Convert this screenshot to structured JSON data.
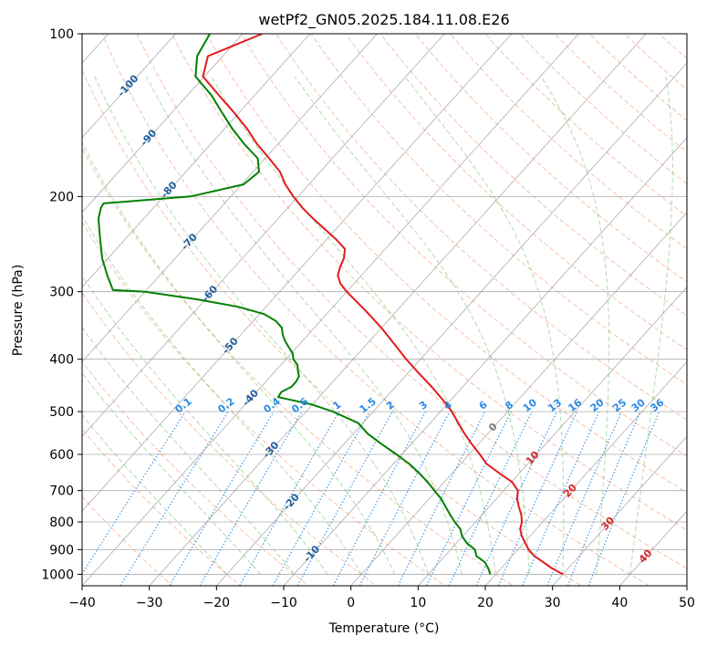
{
  "chart_data": {
    "type": "line",
    "title": "wetPf2_GN05.2025.184.11.08.E26",
    "xlabel": "Temperature (°C)",
    "ylabel": "Pressure (hPa)",
    "xlim": [
      -40,
      50
    ],
    "ylim": [
      1050,
      100
    ],
    "y_scale": "log",
    "x_ticks": [
      -40,
      -30,
      -20,
      -10,
      0,
      10,
      20,
      30,
      40,
      50
    ],
    "y_ticks": [
      100,
      200,
      300,
      400,
      500,
      600,
      700,
      800,
      900,
      1000
    ],
    "grid": true,
    "colors": {
      "temperature": "#e41a1c",
      "dewpoint": "#008000",
      "isotherm": "#999999",
      "dry_adiabat": "#f4a582",
      "moist_adiabat": "#4daf4a",
      "mixing_ratio": "#2b8be6",
      "label_dark_blue": "#1f5f9e",
      "label_red": "#d62728",
      "label_gray": "#777777"
    },
    "series": [
      {
        "key": "temperature",
        "pressure": [
          1000,
          975,
          950,
          925,
          900,
          875,
          850,
          825,
          800,
          775,
          750,
          725,
          700,
          675,
          650,
          625,
          600,
          575,
          550,
          525,
          500,
          475,
          450,
          425,
          400,
          375,
          350,
          325,
          300,
          290,
          280,
          270,
          260,
          250,
          240,
          230,
          220,
          210,
          200,
          190,
          180,
          170,
          160,
          150,
          140,
          130,
          120,
          110,
          100
        ],
        "values": [
          30.0,
          27.6,
          25.5,
          23.3,
          21.6,
          20.2,
          18.8,
          17.6,
          16.9,
          15.8,
          14.4,
          13.1,
          12.1,
          10.1,
          7.0,
          3.9,
          1.6,
          -0.9,
          -3.4,
          -5.8,
          -8.3,
          -11.3,
          -14.6,
          -18.3,
          -22.1,
          -25.9,
          -30.0,
          -34.7,
          -40.0,
          -42.0,
          -43.5,
          -44.3,
          -44.9,
          -46.0,
          -48.6,
          -51.6,
          -54.7,
          -57.8,
          -60.7,
          -63.5,
          -66.0,
          -69.4,
          -73.1,
          -76.6,
          -80.7,
          -85.3,
          -90.2,
          -92.2,
          -87.1
        ]
      },
      {
        "key": "dewpoint",
        "pressure": [
          1000,
          975,
          950,
          925,
          900,
          875,
          850,
          825,
          800,
          775,
          750,
          725,
          700,
          675,
          650,
          625,
          600,
          575,
          550,
          525,
          500,
          485,
          470,
          460,
          450,
          440,
          430,
          420,
          410,
          400,
          390,
          380,
          370,
          360,
          350,
          340,
          330,
          320,
          310,
          300,
          298,
          280,
          260,
          240,
          220,
          210,
          206,
          200,
          190,
          180,
          170,
          160,
          150,
          140,
          130,
          120,
          110,
          100
        ],
        "values": [
          19.2,
          18.1,
          16.8,
          14.7,
          13.6,
          11.5,
          9.9,
          8.7,
          6.9,
          5.2,
          3.5,
          1.8,
          -0.3,
          -2.5,
          -4.9,
          -7.6,
          -10.8,
          -14.3,
          -17.8,
          -20.7,
          -26.0,
          -30.1,
          -36.1,
          -36.3,
          -35.5,
          -35.5,
          -35.8,
          -36.7,
          -37.5,
          -38.9,
          -39.8,
          -41.2,
          -42.6,
          -43.8,
          -44.8,
          -46.6,
          -49.3,
          -54.1,
          -61.2,
          -70.0,
          -75.0,
          -77.8,
          -80.9,
          -83.7,
          -86.7,
          -87.8,
          -88.0,
          -76.0,
          -69.7,
          -69.1,
          -71.1,
          -75.0,
          -78.8,
          -82.5,
          -86.4,
          -91.3,
          -93.8,
          -94.9
        ]
      }
    ]
  },
  "labels": {
    "mixing_ratio": [
      "0.1",
      "0.2",
      "0.4",
      "0.6",
      "1",
      "1.5",
      "2",
      "3",
      "4",
      "6",
      "8",
      "10",
      "13",
      "16",
      "20",
      "25",
      "30",
      "36"
    ],
    "isotherm": [
      "-100",
      "-90",
      "-80",
      "-70",
      "-60",
      "-50",
      "-40",
      "-30",
      "-20",
      "-10",
      "0",
      "10",
      "20",
      "30",
      "40"
    ]
  }
}
